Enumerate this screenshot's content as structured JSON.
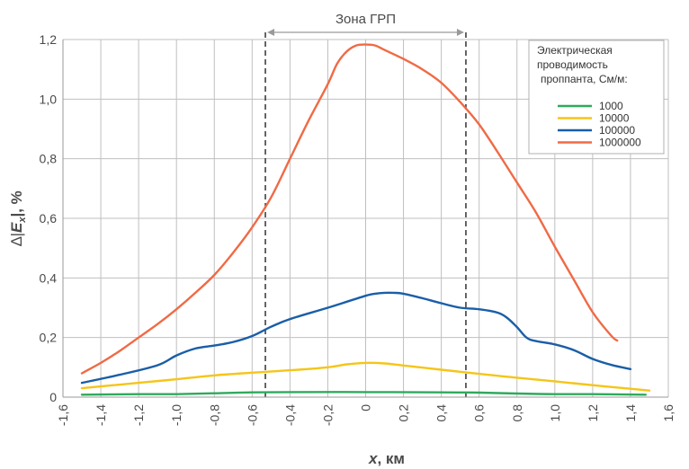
{
  "chart_data": {
    "type": "line",
    "xlabel_italic": "x",
    "xlabel_unit": ", км",
    "ylabel_prefix": "∆|",
    "ylabel_var": "E",
    "ylabel_sub": "x",
    "ylabel_suffix": "|, %",
    "xlim": [
      -1.6,
      1.6
    ],
    "ylim": [
      0,
      1.2
    ],
    "x_ticks": [
      -1.6,
      -1.4,
      -1.2,
      -1.0,
      -0.8,
      -0.6,
      -0.4,
      -0.2,
      0,
      0.2,
      0.4,
      0.6,
      0.8,
      1.0,
      1.2,
      1.4,
      1.6
    ],
    "x_tick_labels": [
      "-1,6",
      "-1,4",
      "-1,2",
      "-1,0",
      "-0,8",
      "-0,6",
      "-0,4",
      "-0,2",
      "0",
      "0,2",
      "0,4",
      "0,6",
      "0,8",
      "1,0",
      "1,2",
      "1,4",
      "1,6"
    ],
    "y_ticks": [
      0,
      0.2,
      0.4,
      0.6,
      0.8,
      1.0,
      1.2
    ],
    "y_tick_labels": [
      "0",
      "0,2",
      "0,4",
      "0,6",
      "0,8",
      "1,0",
      "1,2"
    ],
    "grid": true,
    "zone": {
      "label": "Зона ГРП",
      "x_start": -0.53,
      "x_end": 0.53
    },
    "legend": {
      "title_lines": [
        "Электрическая",
        "проводимость",
        "проппанта, См/м:"
      ],
      "placement": "top-right"
    },
    "series": [
      {
        "name": "1000",
        "color": "#2eaa5c",
        "points": [
          [
            -1.5,
            0.008
          ],
          [
            -1.2,
            0.01
          ],
          [
            -1.0,
            0.01
          ],
          [
            -0.8,
            0.013
          ],
          [
            -0.6,
            0.016
          ],
          [
            -0.4,
            0.017
          ],
          [
            0,
            0.017
          ],
          [
            0.4,
            0.016
          ],
          [
            0.6,
            0.015
          ],
          [
            0.8,
            0.012
          ],
          [
            1.0,
            0.01
          ],
          [
            1.2,
            0.01
          ],
          [
            1.48,
            0.008
          ]
        ]
      },
      {
        "name": "10000",
        "color": "#f5c518",
        "points": [
          [
            -1.5,
            0.03
          ],
          [
            -1.2,
            0.048
          ],
          [
            -1.0,
            0.06
          ],
          [
            -0.8,
            0.073
          ],
          [
            -0.6,
            0.082
          ],
          [
            -0.4,
            0.09
          ],
          [
            -0.2,
            0.1
          ],
          [
            -0.1,
            0.11
          ],
          [
            0,
            0.115
          ],
          [
            0.1,
            0.113
          ],
          [
            0.2,
            0.106
          ],
          [
            0.4,
            0.092
          ],
          [
            0.6,
            0.078
          ],
          [
            0.8,
            0.065
          ],
          [
            1.0,
            0.053
          ],
          [
            1.2,
            0.04
          ],
          [
            1.4,
            0.028
          ],
          [
            1.5,
            0.022
          ]
        ]
      },
      {
        "name": "100000",
        "color": "#1a5ea8",
        "points": [
          [
            -1.5,
            0.048
          ],
          [
            -1.3,
            0.075
          ],
          [
            -1.1,
            0.107
          ],
          [
            -1.0,
            0.14
          ],
          [
            -0.9,
            0.163
          ],
          [
            -0.8,
            0.173
          ],
          [
            -0.7,
            0.185
          ],
          [
            -0.6,
            0.205
          ],
          [
            -0.5,
            0.236
          ],
          [
            -0.4,
            0.262
          ],
          [
            -0.2,
            0.3
          ],
          [
            0,
            0.34
          ],
          [
            0.05,
            0.347
          ],
          [
            0.1,
            0.35
          ],
          [
            0.15,
            0.35
          ],
          [
            0.2,
            0.347
          ],
          [
            0.3,
            0.332
          ],
          [
            0.4,
            0.315
          ],
          [
            0.5,
            0.3
          ],
          [
            0.6,
            0.295
          ],
          [
            0.7,
            0.283
          ],
          [
            0.75,
            0.265
          ],
          [
            0.8,
            0.235
          ],
          [
            0.85,
            0.2
          ],
          [
            0.9,
            0.188
          ],
          [
            1.0,
            0.177
          ],
          [
            1.1,
            0.158
          ],
          [
            1.2,
            0.128
          ],
          [
            1.3,
            0.108
          ],
          [
            1.4,
            0.094
          ]
        ]
      },
      {
        "name": "1000000",
        "color": "#f06a45",
        "points": [
          [
            -1.5,
            0.08
          ],
          [
            -1.4,
            0.115
          ],
          [
            -1.3,
            0.155
          ],
          [
            -1.2,
            0.2
          ],
          [
            -1.1,
            0.245
          ],
          [
            -1.0,
            0.295
          ],
          [
            -0.9,
            0.35
          ],
          [
            -0.8,
            0.41
          ],
          [
            -0.7,
            0.485
          ],
          [
            -0.6,
            0.57
          ],
          [
            -0.5,
            0.67
          ],
          [
            -0.4,
            0.8
          ],
          [
            -0.3,
            0.93
          ],
          [
            -0.2,
            1.05
          ],
          [
            -0.15,
            1.12
          ],
          [
            -0.1,
            1.16
          ],
          [
            -0.05,
            1.18
          ],
          [
            0,
            1.183
          ],
          [
            0.05,
            1.18
          ],
          [
            0.1,
            1.165
          ],
          [
            0.2,
            1.135
          ],
          [
            0.3,
            1.1
          ],
          [
            0.4,
            1.055
          ],
          [
            0.5,
            0.99
          ],
          [
            0.6,
            0.915
          ],
          [
            0.7,
            0.82
          ],
          [
            0.8,
            0.72
          ],
          [
            0.9,
            0.62
          ],
          [
            1.0,
            0.505
          ],
          [
            1.1,
            0.395
          ],
          [
            1.2,
            0.285
          ],
          [
            1.3,
            0.205
          ],
          [
            1.33,
            0.19
          ]
        ]
      }
    ]
  }
}
